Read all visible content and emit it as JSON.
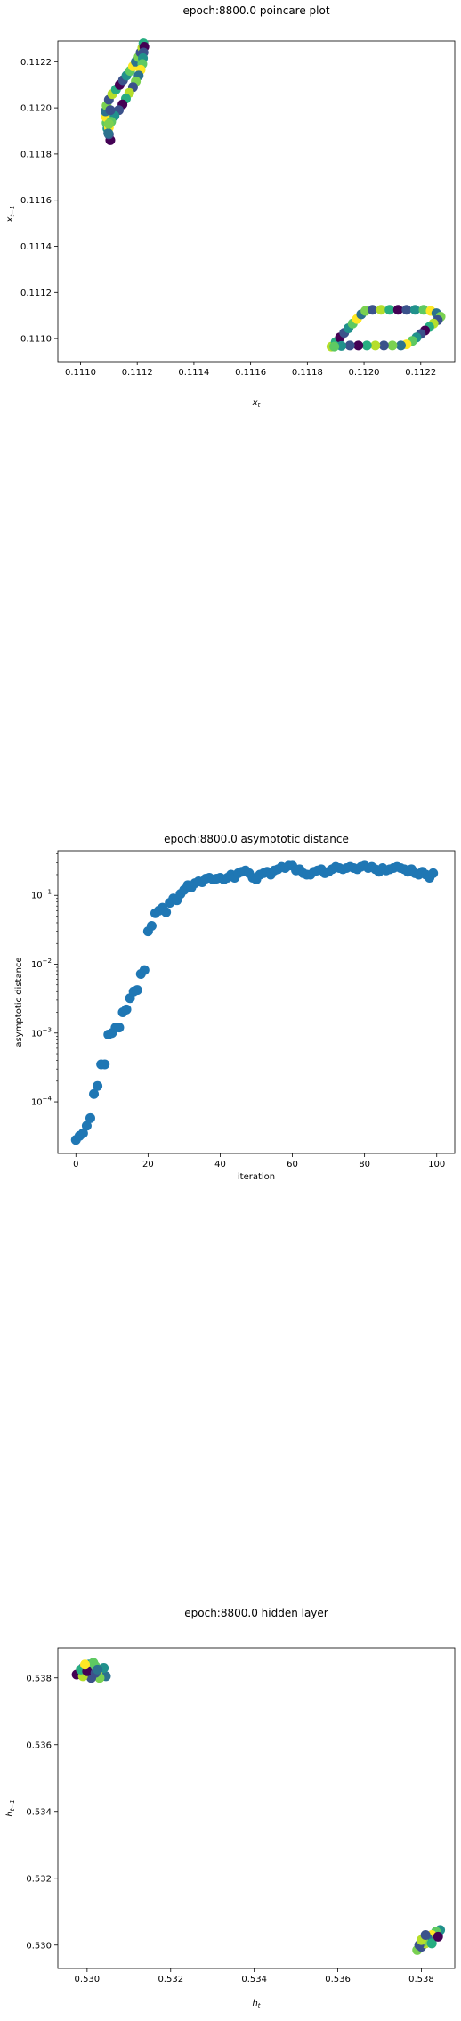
{
  "chart_data": [
    {
      "type": "scatter",
      "title": "epoch:8800.0 poincare plot",
      "xlabel": "x_t",
      "ylabel": "x_{t-1}",
      "xlim": [
        0.11092,
        0.11232
      ],
      "ylim": [
        0.1109,
        0.11229
      ],
      "xticks": [
        "0.1110",
        "0.1112",
        "0.1114",
        "0.1116",
        "0.1118",
        "0.1120",
        "0.1122"
      ],
      "yticks": [
        "0.1110",
        "0.1112",
        "0.1114",
        "0.1116",
        "0.1118",
        "0.1120",
        "0.1122"
      ],
      "colormap": "viridis",
      "points": [
        [
          0.111105,
          0.11186
        ],
        [
          0.1111,
          0.111885
        ],
        [
          0.111095,
          0.11191
        ],
        [
          0.111092,
          0.111935
        ],
        [
          0.11109,
          0.11196
        ],
        [
          0.111088,
          0.111985
        ],
        [
          0.111092,
          0.11201
        ],
        [
          0.1111,
          0.112035
        ],
        [
          0.111112,
          0.11206
        ],
        [
          0.111125,
          0.11208
        ],
        [
          0.111138,
          0.1121
        ],
        [
          0.11115,
          0.11212
        ],
        [
          0.111162,
          0.11214
        ],
        [
          0.111175,
          0.11216
        ],
        [
          0.111185,
          0.11218
        ],
        [
          0.111195,
          0.1122
        ],
        [
          0.111205,
          0.11222
        ],
        [
          0.111212,
          0.11224
        ],
        [
          0.111218,
          0.11226
        ],
        [
          0.111222,
          0.11228
        ],
        [
          0.111225,
          0.112265
        ],
        [
          0.111222,
          0.11224
        ],
        [
          0.11122,
          0.112215
        ],
        [
          0.111218,
          0.11219
        ],
        [
          0.111212,
          0.112165
        ],
        [
          0.111205,
          0.11214
        ],
        [
          0.111195,
          0.112115
        ],
        [
          0.111185,
          0.11209
        ],
        [
          0.111172,
          0.112065
        ],
        [
          0.11116,
          0.11204
        ],
        [
          0.111148,
          0.112015
        ],
        [
          0.111135,
          0.11199
        ],
        [
          0.11112,
          0.111965
        ],
        [
          0.111108,
          0.11194
        ],
        [
          0.1111,
          0.111915
        ],
        [
          0.111098,
          0.11189
        ],
        [
          0.1111,
          0.11193
        ],
        [
          0.111105,
          0.11199
        ],
        [
          0.111885,
          0.110965
        ],
        [
          0.1119,
          0.110985
        ],
        [
          0.111915,
          0.111005
        ],
        [
          0.11193,
          0.111025
        ],
        [
          0.111945,
          0.111045
        ],
        [
          0.11196,
          0.111065
        ],
        [
          0.111975,
          0.111085
        ],
        [
          0.11199,
          0.111105
        ],
        [
          0.112005,
          0.11112
        ],
        [
          0.11203,
          0.111125
        ],
        [
          0.11206,
          0.111125
        ],
        [
          0.11209,
          0.111125
        ],
        [
          0.11212,
          0.111125
        ],
        [
          0.11215,
          0.111125
        ],
        [
          0.11218,
          0.111125
        ],
        [
          0.11221,
          0.111125
        ],
        [
          0.112235,
          0.11112
        ],
        [
          0.112255,
          0.11111
        ],
        [
          0.11227,
          0.111095
        ],
        [
          0.11226,
          0.11108
        ],
        [
          0.112245,
          0.111065
        ],
        [
          0.11223,
          0.11105
        ],
        [
          0.112215,
          0.111035
        ],
        [
          0.1122,
          0.11102
        ],
        [
          0.112185,
          0.111005
        ],
        [
          0.11217,
          0.11099
        ],
        [
          0.11215,
          0.110975
        ],
        [
          0.11213,
          0.11097
        ],
        [
          0.1121,
          0.11097
        ],
        [
          0.11207,
          0.11097
        ],
        [
          0.11204,
          0.11097
        ],
        [
          0.11201,
          0.11097
        ],
        [
          0.11198,
          0.11097
        ],
        [
          0.11195,
          0.11097
        ],
        [
          0.11192,
          0.110968
        ],
        [
          0.111895,
          0.110965
        ]
      ]
    },
    {
      "type": "scatter",
      "title": "epoch:8800.0 asymptotic distance",
      "xlabel": "iteration",
      "ylabel": "asymptotic distance",
      "yscale": "log",
      "xlim": [
        -5,
        105
      ],
      "ylim_log10": [
        -4.75,
        -0.35
      ],
      "xticks": [
        "0",
        "20",
        "40",
        "60",
        "80",
        "100"
      ],
      "yticks": [
        "10^-4",
        "10^-3",
        "10^-2",
        "10^-1"
      ],
      "color": "#1f77b4",
      "x": [
        0,
        1,
        2,
        3,
        4,
        5,
        6,
        7,
        8,
        9,
        10,
        11,
        12,
        13,
        14,
        15,
        16,
        17,
        18,
        19,
        20,
        21,
        22,
        23,
        24,
        25,
        26,
        27,
        28,
        29,
        30,
        31,
        32,
        33,
        34,
        35,
        36,
        37,
        38,
        39,
        40,
        41,
        42,
        43,
        44,
        45,
        46,
        47,
        48,
        49,
        50,
        51,
        52,
        53,
        54,
        55,
        56,
        57,
        58,
        59,
        60,
        61,
        62,
        63,
        64,
        65,
        66,
        67,
        68,
        69,
        70,
        71,
        72,
        73,
        74,
        75,
        76,
        77,
        78,
        79,
        80,
        81,
        82,
        83,
        84,
        85,
        86,
        87,
        88,
        89,
        90,
        91,
        92,
        93,
        94,
        95,
        96,
        97,
        98,
        99
      ],
      "y": [
        2.8e-05,
        3.2e-05,
        3.5e-05,
        4.5e-05,
        5.8e-05,
        0.00013,
        0.00017,
        0.00035,
        0.00035,
        0.00095,
        0.001,
        0.0012,
        0.0012,
        0.002,
        0.0022,
        0.0032,
        0.004,
        0.0042,
        0.0072,
        0.0082,
        0.03,
        0.036,
        0.055,
        0.06,
        0.066,
        0.057,
        0.078,
        0.09,
        0.085,
        0.105,
        0.12,
        0.14,
        0.13,
        0.15,
        0.16,
        0.155,
        0.175,
        0.18,
        0.17,
        0.175,
        0.18,
        0.17,
        0.18,
        0.2,
        0.18,
        0.21,
        0.22,
        0.23,
        0.21,
        0.18,
        0.17,
        0.2,
        0.21,
        0.22,
        0.2,
        0.23,
        0.24,
        0.26,
        0.25,
        0.27,
        0.27,
        0.23,
        0.24,
        0.21,
        0.2,
        0.2,
        0.22,
        0.23,
        0.24,
        0.21,
        0.22,
        0.24,
        0.26,
        0.25,
        0.24,
        0.25,
        0.26,
        0.25,
        0.24,
        0.26,
        0.27,
        0.25,
        0.26,
        0.24,
        0.22,
        0.25,
        0.23,
        0.24,
        0.25,
        0.26,
        0.25,
        0.24,
        0.22,
        0.24,
        0.21,
        0.2,
        0.22,
        0.2,
        0.18,
        0.21
      ]
    },
    {
      "type": "scatter",
      "title": "epoch:8800.0 hidden layer",
      "xlabel": "h_t",
      "ylabel": "h_{t-1}",
      "xlim": [
        0.5293,
        0.5388
      ],
      "ylim": [
        0.5293,
        0.5389
      ],
      "xticks": [
        "0.530",
        "0.532",
        "0.534",
        "0.536",
        "0.538"
      ],
      "yticks": [
        "0.530",
        "0.532",
        "0.534",
        "0.536",
        "0.538"
      ],
      "colormap": "viridis",
      "points": [
        [
          0.52975,
          0.5381
        ],
        [
          0.5299,
          0.5383
        ],
        [
          0.53005,
          0.5384
        ],
        [
          0.5302,
          0.53835
        ],
        [
          0.53035,
          0.5382
        ],
        [
          0.53045,
          0.53805
        ],
        [
          0.5303,
          0.538
        ],
        [
          0.5301,
          0.538
        ],
        [
          0.5299,
          0.53805
        ],
        [
          0.52985,
          0.53825
        ],
        [
          0.53,
          0.5382
        ],
        [
          0.5302,
          0.53815
        ],
        [
          0.5304,
          0.5383
        ],
        [
          0.53015,
          0.53845
        ],
        [
          0.52995,
          0.5384
        ],
        [
          0.53025,
          0.53825
        ],
        [
          0.5379,
          0.52985
        ],
        [
          0.538,
          0.52995
        ],
        [
          0.5381,
          0.53005
        ],
        [
          0.5382,
          0.53015
        ],
        [
          0.5383,
          0.53025
        ],
        [
          0.5384,
          0.53035
        ],
        [
          0.53845,
          0.53045
        ],
        [
          0.53835,
          0.5304
        ],
        [
          0.53825,
          0.5303
        ],
        [
          0.53815,
          0.5302
        ],
        [
          0.53805,
          0.5301
        ],
        [
          0.53795,
          0.53
        ],
        [
          0.538,
          0.53015
        ],
        [
          0.53825,
          0.53005
        ],
        [
          0.5384,
          0.53025
        ],
        [
          0.5381,
          0.5303
        ]
      ]
    }
  ]
}
